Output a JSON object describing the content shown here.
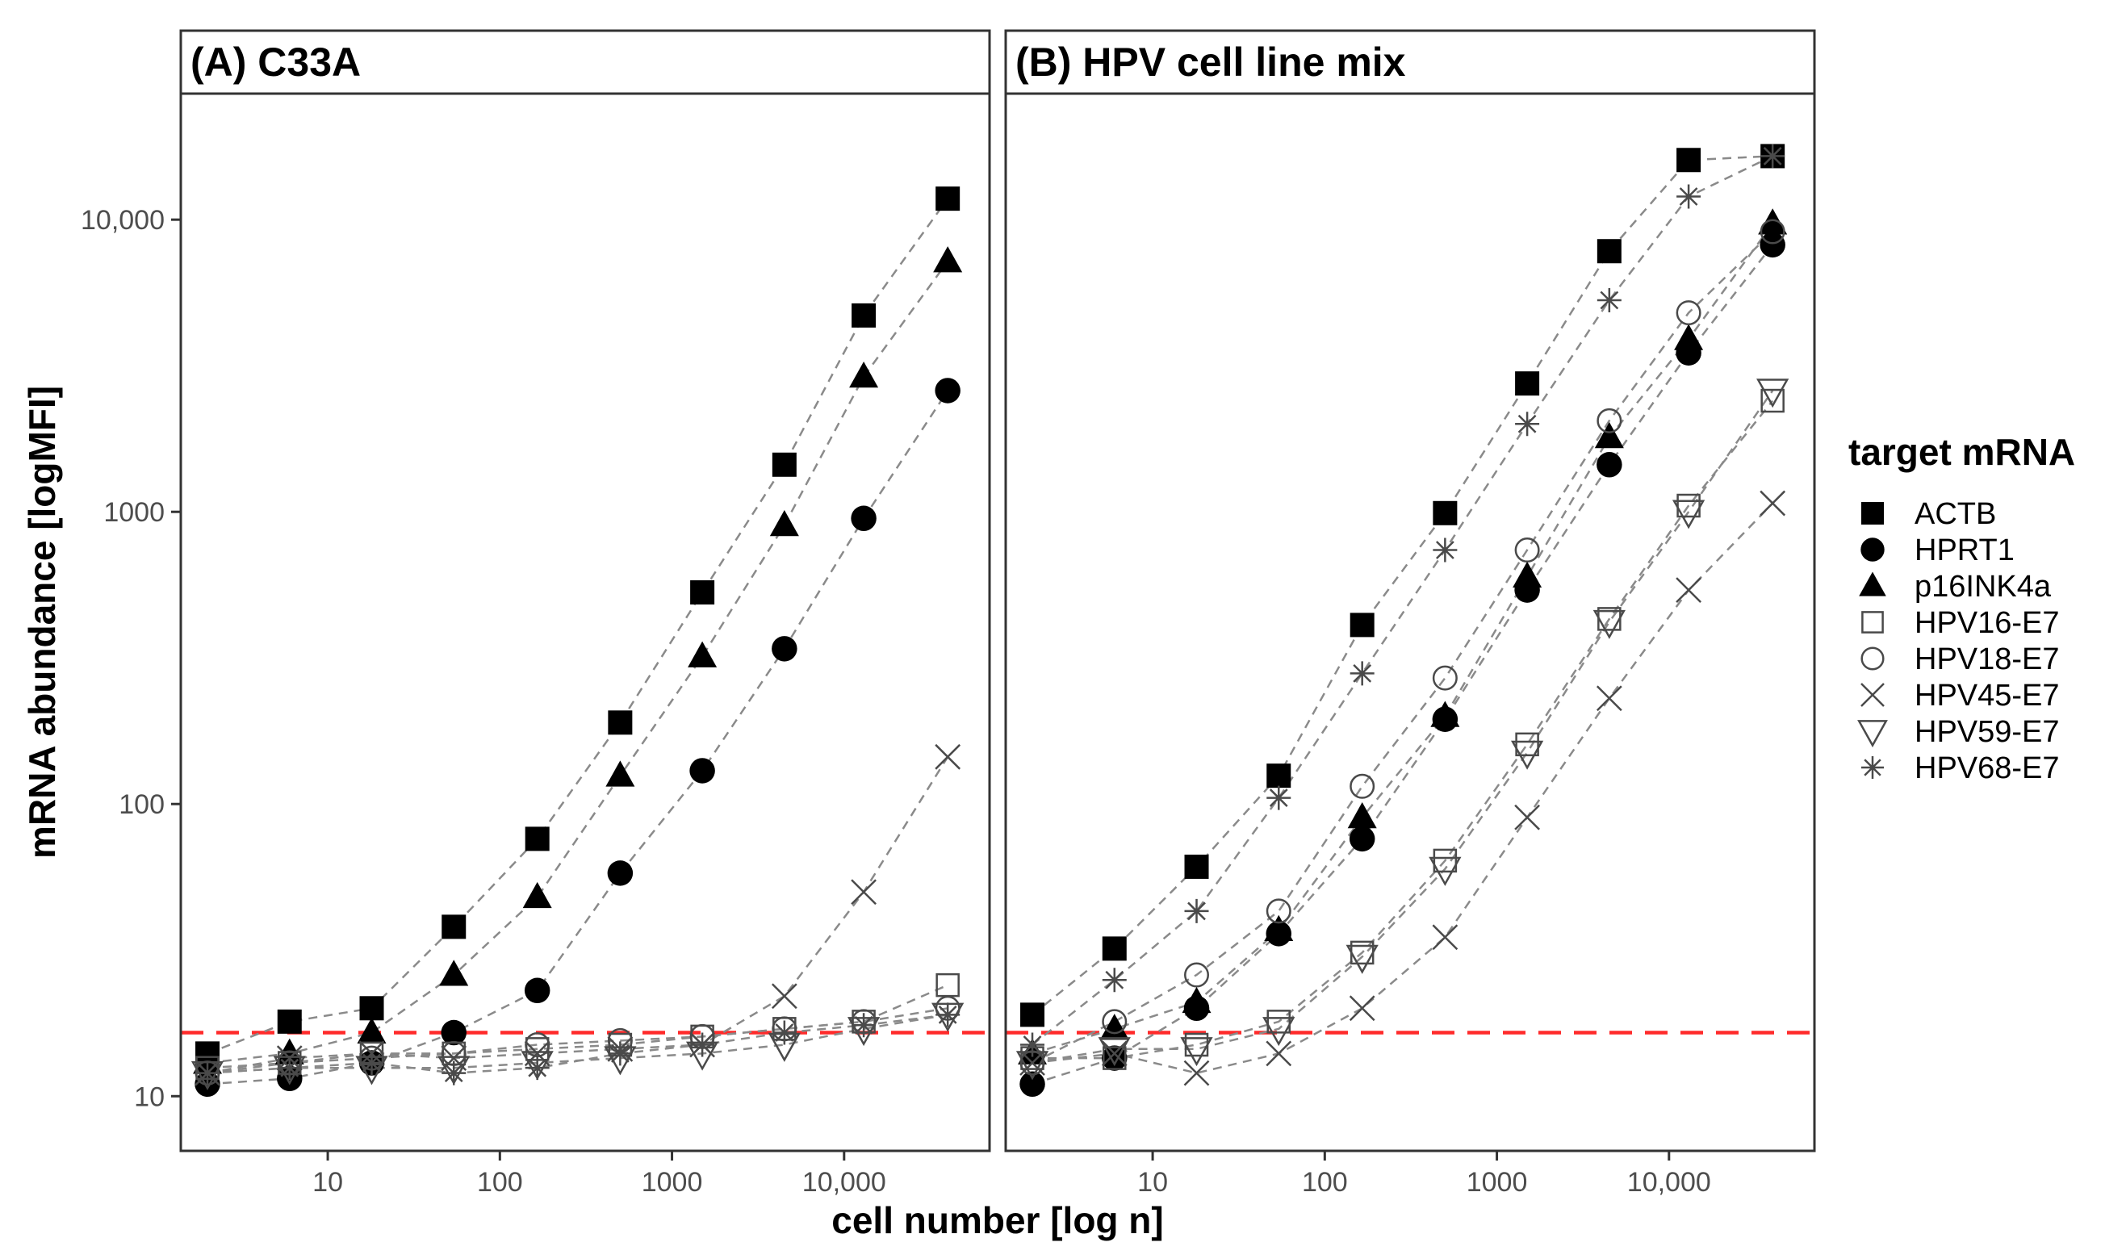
{
  "chart_data": {
    "type": "scatter",
    "xlabel": "cell number [log n]",
    "ylabel": "mRNA abundance [logMFI]",
    "x_scale": "log10",
    "y_scale": "log10",
    "xlim": [
      1.4,
      70000
    ],
    "ylim": [
      6.5,
      27000
    ],
    "x_ticks": [
      {
        "value": 10,
        "label": "10"
      },
      {
        "value": 100,
        "label": "100"
      },
      {
        "value": 1000,
        "label": "1000"
      },
      {
        "value": 10000,
        "label": "10,000"
      }
    ],
    "y_ticks": [
      {
        "value": 10,
        "label": "10"
      },
      {
        "value": 100,
        "label": "100"
      },
      {
        "value": 1000,
        "label": "1000"
      },
      {
        "value": 10000,
        "label": "10,000"
      }
    ],
    "cutoff_line": {
      "y": 16.5,
      "color": "#ff2b2b",
      "style": "dashed"
    },
    "x_values": [
      2,
      6,
      18,
      54,
      165,
      500,
      1500,
      4500,
      13000,
      40000
    ],
    "legend": {
      "title": "target mRNA",
      "placement": "right",
      "entries": [
        {
          "label": "ACTB",
          "symbol": "filled-square"
        },
        {
          "label": "HPRT1",
          "symbol": "filled-circle"
        },
        {
          "label": "p16INK4a",
          "symbol": "filled-triangle"
        },
        {
          "label": "HPV16-E7",
          "symbol": "open-square"
        },
        {
          "label": "HPV18-E7",
          "symbol": "open-circle"
        },
        {
          "label": "HPV45-E7",
          "symbol": "cross"
        },
        {
          "label": "HPV59-E7",
          "symbol": "open-triangle-down"
        },
        {
          "label": "HPV68-E7",
          "symbol": "asterisk"
        }
      ]
    },
    "panels": [
      {
        "title": "(A) C33A",
        "series": [
          {
            "name": "ACTB",
            "y": [
              14,
              18,
              20,
              38,
              76,
              190,
              530,
              1450,
              4700,
              11800
            ]
          },
          {
            "name": "HPRT1",
            "y": [
              11,
              11.5,
              13,
              16.5,
              23,
              58,
              130,
              340,
              950,
              2600
            ]
          },
          {
            "name": "p16INK4a",
            "y": [
              13,
              14,
              16.5,
              26,
              48,
              125,
              320,
              900,
              2900,
              7200
            ]
          },
          {
            "name": "HPV16-E7",
            "y": [
              12.5,
              13,
              14,
              14,
              14.5,
              15,
              16,
              17,
              18,
              24
            ]
          },
          {
            "name": "HPV18-E7",
            "y": [
              12,
              13,
              13.5,
              14,
              15,
              15.5,
              16,
              17,
              18,
              20
            ]
          },
          {
            "name": "HPV45-E7",
            "y": [
              12,
              13.5,
              14,
              13.5,
              14,
              14.5,
              15,
              22,
              50,
              145
            ]
          },
          {
            "name": "HPV59-E7",
            "y": [
              12,
              12.5,
              12.5,
              12.5,
              13,
              13.5,
              14,
              15,
              17,
              19
            ]
          },
          {
            "name": "HPV68-E7",
            "y": [
              12,
              12.5,
              13,
              12,
              12.5,
              14,
              15,
              16.5,
              17.5,
              19
            ]
          }
        ]
      },
      {
        "title": "(B) HPV cell line mix",
        "series": [
          {
            "name": "ACTB",
            "y": [
              19,
              32,
              61,
              125,
              410,
              990,
              2750,
              7800,
              16000,
              16500
            ]
          },
          {
            "name": "HPRT1",
            "y": [
              11,
              13.5,
              20,
              36,
              76,
              195,
              540,
              1450,
              3500,
              8200
            ]
          },
          {
            "name": "p16INK4a",
            "y": [
              14,
              17,
              21,
              37,
              90,
              200,
              600,
              1800,
              3900,
              9700
            ]
          },
          {
            "name": "HPV16-E7",
            "y": [
              13.5,
              13.5,
              15,
              18,
              31,
              64,
              160,
              430,
              1050,
              2400
            ]
          },
          {
            "name": "HPV18-E7",
            "y": [
              13,
              18,
              26,
              43,
              115,
              270,
              740,
              2050,
              4800,
              9100
            ]
          },
          {
            "name": "HPV45-E7",
            "y": [
              13,
              14,
              12,
              14,
              20,
              35,
              90,
              230,
              540,
              1070
            ]
          },
          {
            "name": "HPV59-E7",
            "y": [
              13,
              14.5,
              14.5,
              17,
              30,
              60,
              150,
              420,
              1000,
              2600
            ]
          },
          {
            "name": "HPV68-E7",
            "y": [
              15,
              25,
              43,
              105,
              280,
              740,
              2000,
              5300,
              12000,
              16500
            ]
          }
        ]
      }
    ]
  }
}
